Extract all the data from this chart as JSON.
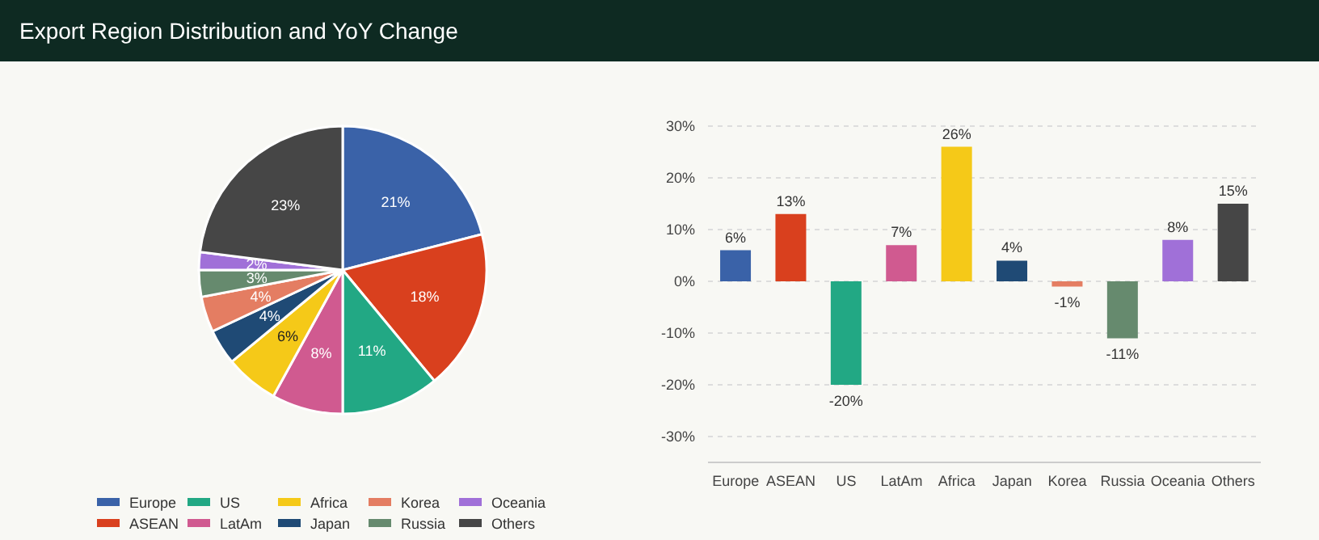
{
  "chart_data": [
    {
      "type": "pie",
      "title": "Export Region Distribution and YoY Change",
      "categories": [
        "Europe",
        "ASEAN",
        "US",
        "LatAm",
        "Africa",
        "Japan",
        "Korea",
        "Russia",
        "Oceania",
        "Others"
      ],
      "values": [
        21,
        18,
        11,
        8,
        6,
        4,
        4,
        3,
        2,
        23
      ],
      "value_labels": [
        "21%",
        "18%",
        "11%",
        "8%",
        "6%",
        "4%",
        "4%",
        "3%",
        "2%",
        "23%"
      ],
      "colors": [
        "#3a62a8",
        "#d9401e",
        "#22a884",
        "#d05a90",
        "#f5c918",
        "#1f4a75",
        "#e47d62",
        "#668a6e",
        "#a070d8",
        "#464646"
      ],
      "legend": "bottom"
    },
    {
      "type": "bar",
      "categories": [
        "Europe",
        "ASEAN",
        "US",
        "LatAm",
        "Africa",
        "Japan",
        "Korea",
        "Russia",
        "Oceania",
        "Others"
      ],
      "values": [
        6,
        13,
        -20,
        7,
        26,
        4,
        -1,
        -11,
        8,
        15
      ],
      "value_labels": [
        "6%",
        "13%",
        "-20%",
        "7%",
        "26%",
        "4%",
        "-1%",
        "-11%",
        "8%",
        "15%"
      ],
      "colors": [
        "#3a62a8",
        "#d9401e",
        "#22a884",
        "#d05a90",
        "#f5c918",
        "#1f4a75",
        "#e47d62",
        "#668a6e",
        "#a070d8",
        "#464646"
      ],
      "ylim": [
        -35,
        30
      ],
      "yticks": [
        {
          "value": -30,
          "label": "-30%"
        },
        {
          "value": -20,
          "label": "-20%"
        },
        {
          "value": -10,
          "label": "-10%"
        },
        {
          "value": 0,
          "label": "0%"
        },
        {
          "value": 10,
          "label": "10%"
        },
        {
          "value": 20,
          "label": "20%"
        },
        {
          "value": 30,
          "label": "30%"
        }
      ],
      "grid": "y",
      "legend": false
    }
  ]
}
